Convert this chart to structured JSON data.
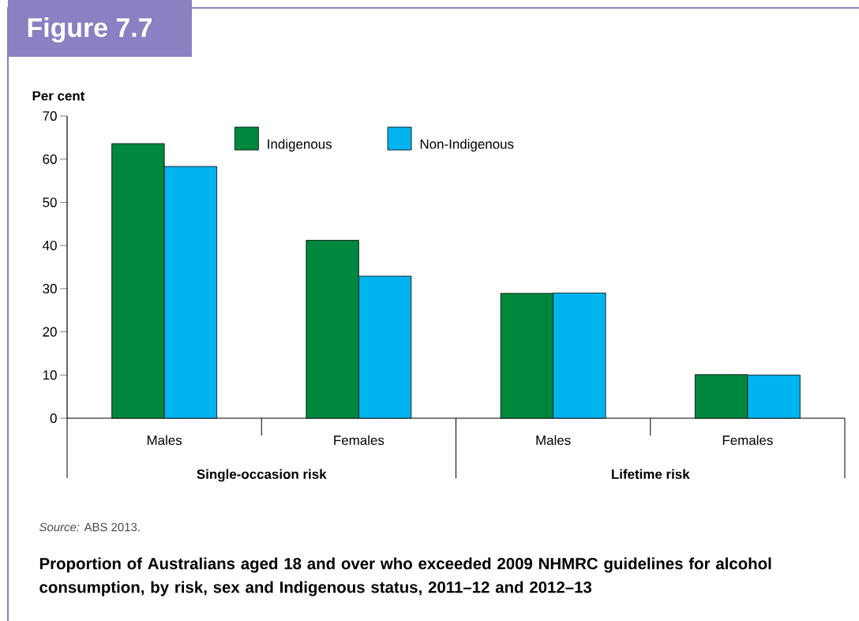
{
  "chart_data": {
    "type": "bar",
    "title": "Figure 7.7",
    "subtitle": "Proportion of Australians aged 18 and over who exceeded 2009 NHMRC guidelines for alcohol consumption, by risk, sex and Indigenous status, 2011–12 and 2012–13",
    "ylabel": "Per cent",
    "categories": [
      "Males",
      "Females",
      "Males",
      "Females"
    ],
    "series": [
      {
        "name": "Indigenous",
        "color": "#00873e",
        "values": [
          63.6,
          41.2,
          28.9,
          10.1
        ]
      },
      {
        "name": "Non-Indigenous",
        "color": "#00b4f0",
        "values": [
          58.3,
          32.9,
          29.0,
          10.0
        ]
      }
    ],
    "annotations": [
      "Single-occasion risk",
      "Lifetime risk",
      "*Source:* ABS 2013."
    ],
    "ylim": [
      0,
      70
    ],
    "yticks": [
      0,
      10,
      20,
      30,
      40,
      50,
      60,
      70
    ],
    "grid": false,
    "legend": "top"
  }
}
